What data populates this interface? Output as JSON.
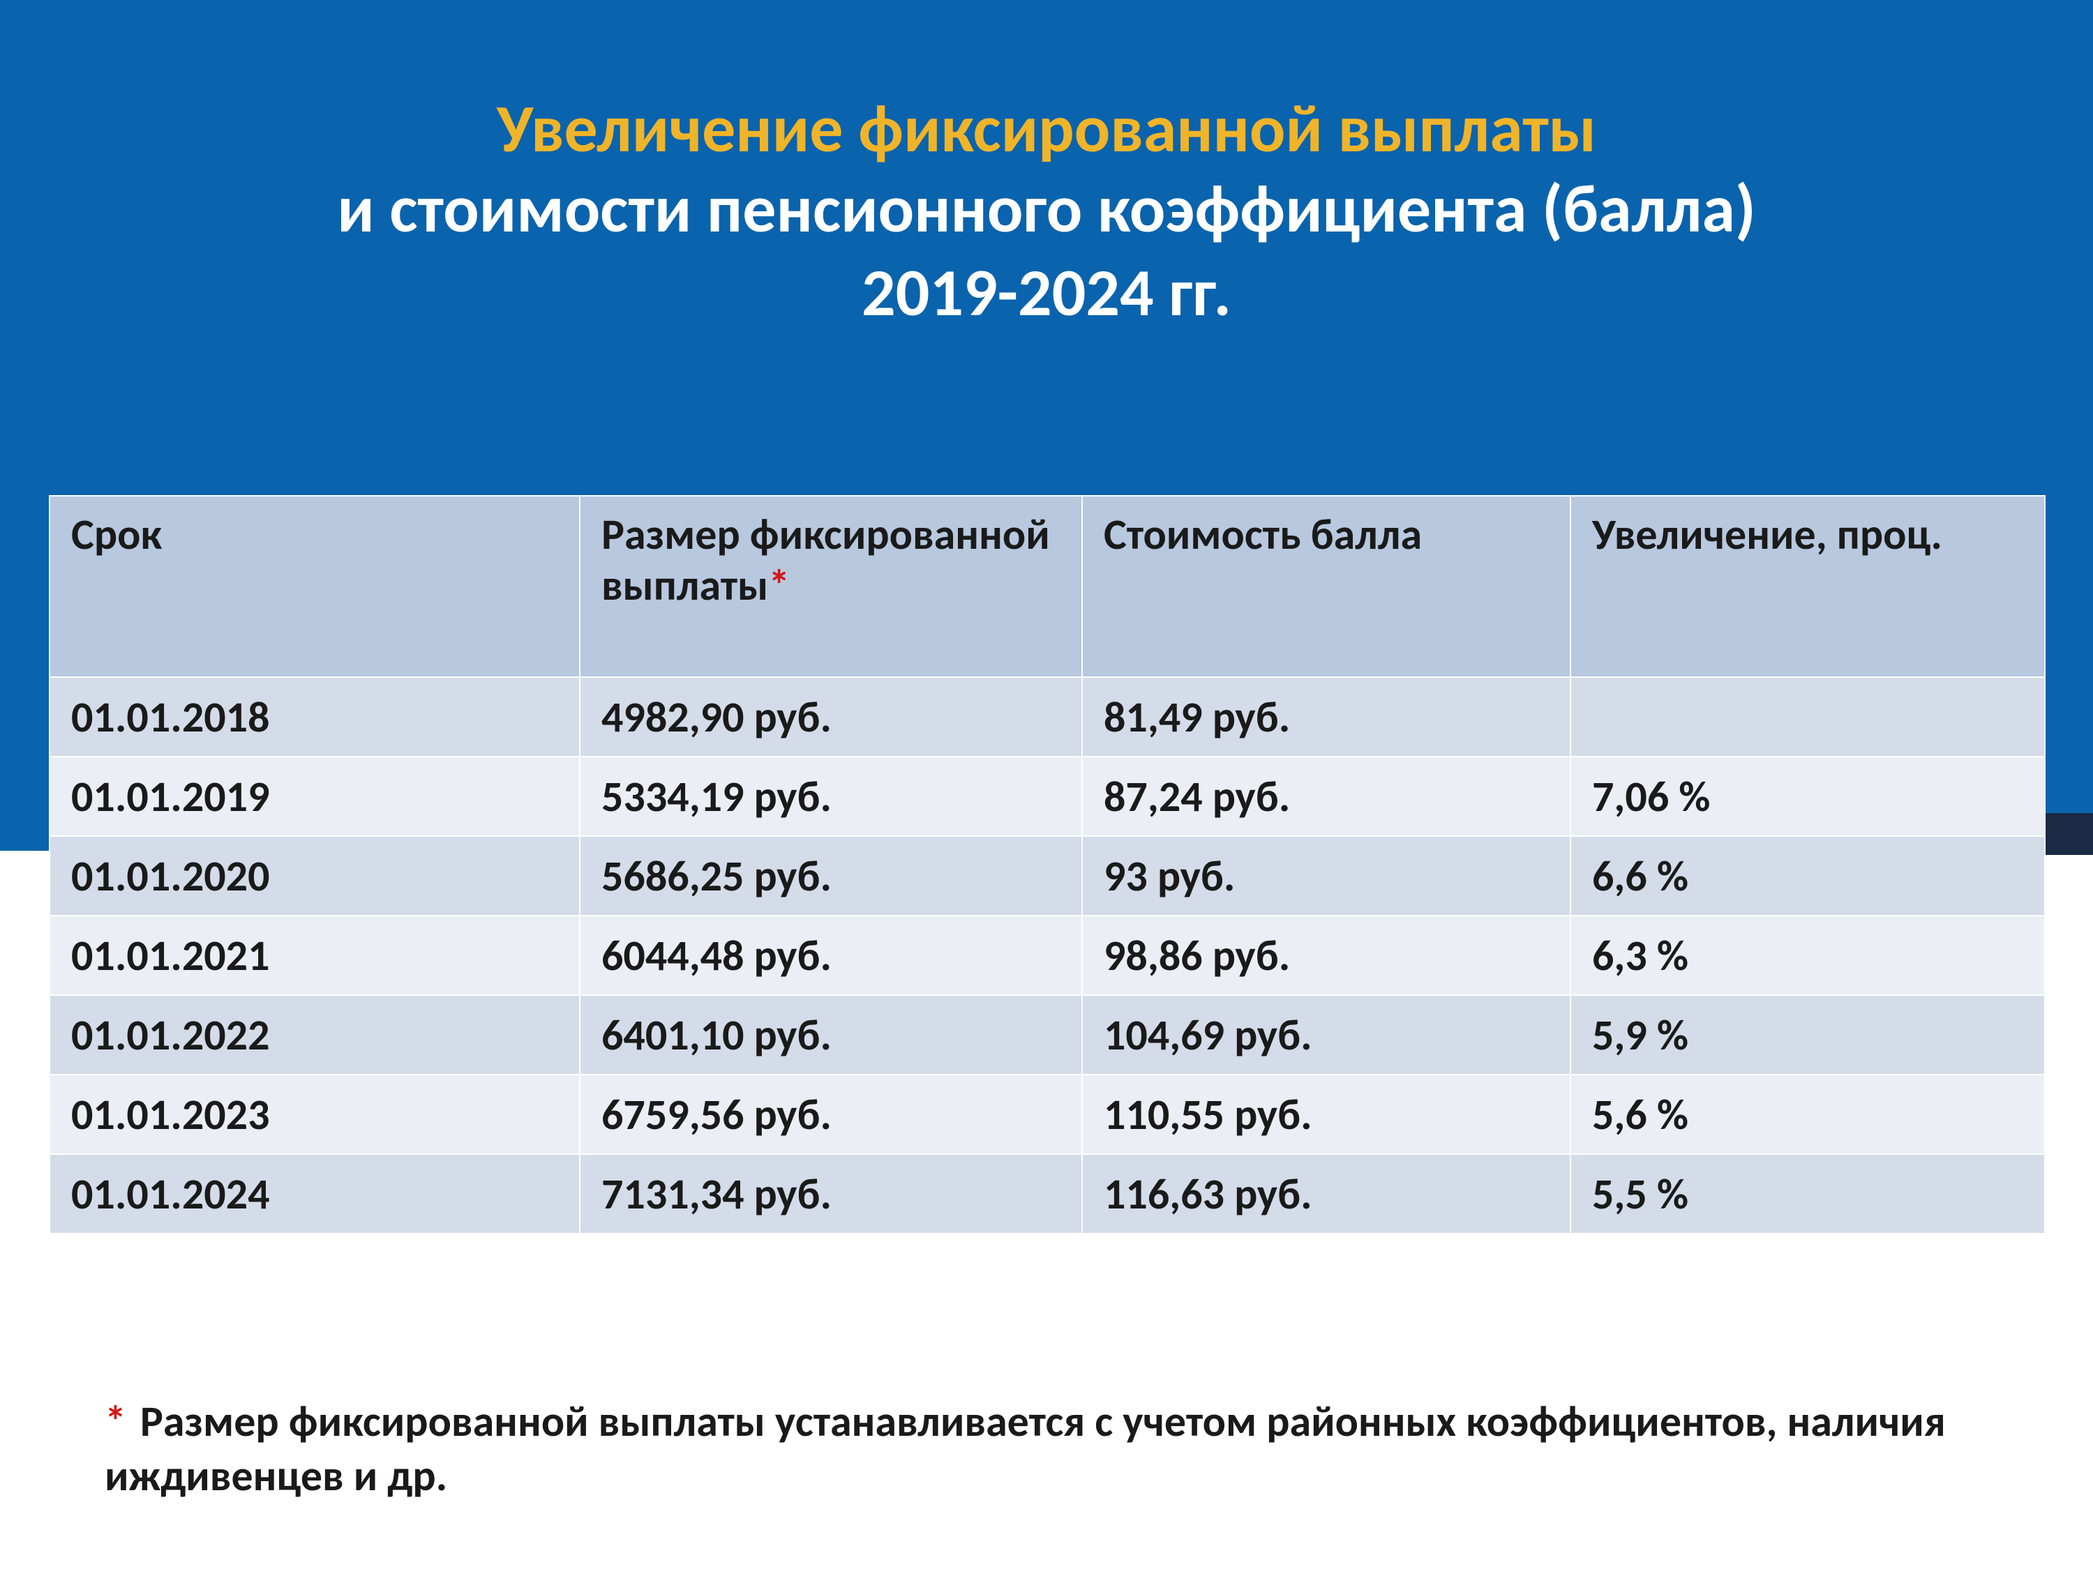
{
  "colors": {
    "panel_bg": "#0a63ad",
    "strip_bg": "#1a2a44",
    "title1": "#f0b429",
    "title2": "#ffffff",
    "header_bg": "#b7c8df",
    "row_a_bg": "#d4dce9",
    "row_b_bg": "#ebeff5",
    "cell_text": "#1a1a1a",
    "asterisk": "#d01818"
  },
  "title": {
    "line1": "Увеличение фиксированной выплаты",
    "line2": "и стоимости пенсионного коэффициента (балла)",
    "line3": "2019-2024 гг."
  },
  "table": {
    "columns": [
      "Срок",
      "Размер фиксированной выплаты",
      "Стоимость балла",
      "Увеличение, проц."
    ],
    "header_asterisk_col": 1,
    "rows": [
      [
        "01.01.2018",
        "4982,90 руб.",
        "81,49 руб.",
        ""
      ],
      [
        "01.01.2019",
        "5334,19 руб.",
        "87,24 руб.",
        "7,06 %"
      ],
      [
        "01.01.2020",
        "5686,25 руб.",
        "93 руб.",
        "6,6 %"
      ],
      [
        "01.01.2021",
        "6044,48 руб.",
        "98,86 руб.",
        "6,3 %"
      ],
      [
        "01.01.2022",
        "6401,10 руб.",
        "104,69 руб.",
        "5,9 %"
      ],
      [
        "01.01.2023",
        "6759,56 руб.",
        "110,55 руб.",
        "5,6 %"
      ],
      [
        "01.01.2024",
        "7131,34 руб.",
        "116,63 руб.",
        "5,5 %"
      ]
    ],
    "row_band": [
      "rA",
      "rB",
      "rA",
      "rB",
      "rA",
      "rB",
      "rA"
    ]
  },
  "footnote": {
    "marker": "*",
    "text": "Размер фиксированной выплаты устанавливается с учетом районных коэффициентов, наличия иждивенцев и др."
  }
}
